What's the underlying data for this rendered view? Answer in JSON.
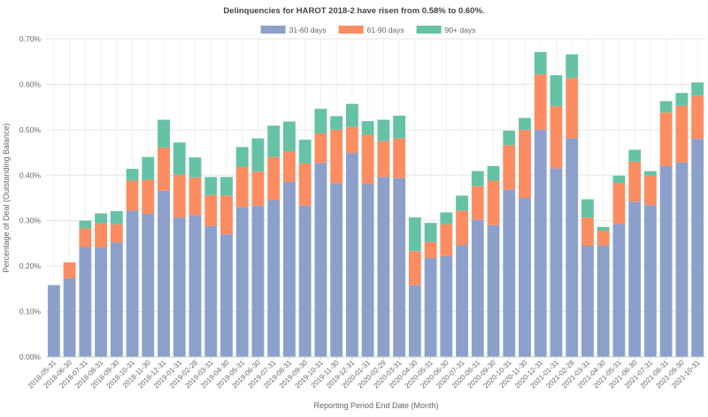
{
  "chart_data": {
    "type": "bar",
    "stacked": true,
    "title": "Delinquencies for HAROT 2018-2 have risen from 0.58% to 0.60%.",
    "xlabel": "Reporting Period End Date (Month)",
    "ylabel": "Percentage of Deal (Outstanding Balance)",
    "ylim": [
      0,
      0.7
    ],
    "yticks": [
      "0.00%",
      "0.10%",
      "0.20%",
      "0.30%",
      "0.40%",
      "0.50%",
      "0.60%",
      "0.70%"
    ],
    "grid": true,
    "legend_position": "top-center",
    "categories": [
      "2018-05-31",
      "2018-06-30",
      "2018-07-31",
      "2018-08-31",
      "2018-09-30",
      "2018-10-31",
      "2018-11-30",
      "2018-12-31",
      "2019-01-31",
      "2019-02-28",
      "2019-03-31",
      "2019-04-30",
      "2019-05-31",
      "2019-06-30",
      "2019-07-31",
      "2019-08-31",
      "2019-09-30",
      "2019-10-31",
      "2019-11-30",
      "2019-12-31",
      "2020-01-31",
      "2020-02-29",
      "2020-03-31",
      "2020-04-30",
      "2020-05-31",
      "2020-06-30",
      "2020-07-31",
      "2020-08-31",
      "2020-09-30",
      "2020-10-31",
      "2020-11-30",
      "2020-12-31",
      "2021-01-31",
      "2021-02-28",
      "2021-03-31",
      "2021-04-30",
      "2021-05-31",
      "2021-06-30",
      "2021-07-31",
      "2021-08-31",
      "2021-09-30",
      "2021-10-31"
    ],
    "series": [
      {
        "name": "31-60 days",
        "color": "#8da0cb",
        "values": [
          0.158,
          0.173,
          0.242,
          0.241,
          0.252,
          0.322,
          0.315,
          0.366,
          0.307,
          0.312,
          0.288,
          0.27,
          0.33,
          0.333,
          0.345,
          0.385,
          0.333,
          0.427,
          0.382,
          0.449,
          0.381,
          0.396,
          0.394,
          0.158,
          0.218,
          0.222,
          0.246,
          0.302,
          0.29,
          0.368,
          0.35,
          0.5,
          0.415,
          0.481,
          0.245,
          0.245,
          0.293,
          0.342,
          0.334,
          0.42,
          0.428,
          0.48
        ]
      },
      {
        "name": "61-90 days",
        "color": "#fc8d62",
        "values": [
          0.0,
          0.035,
          0.041,
          0.053,
          0.04,
          0.066,
          0.075,
          0.095,
          0.094,
          0.083,
          0.068,
          0.085,
          0.088,
          0.075,
          0.095,
          0.067,
          0.093,
          0.065,
          0.118,
          0.057,
          0.108,
          0.079,
          0.087,
          0.075,
          0.035,
          0.07,
          0.076,
          0.074,
          0.098,
          0.098,
          0.15,
          0.122,
          0.137,
          0.133,
          0.062,
          0.033,
          0.09,
          0.088,
          0.065,
          0.118,
          0.125,
          0.095
        ]
      },
      {
        "name": "90+ days",
        "color": "#66c2a5",
        "values": [
          0.0,
          0.0,
          0.017,
          0.022,
          0.029,
          0.026,
          0.05,
          0.061,
          0.071,
          0.044,
          0.04,
          0.041,
          0.044,
          0.073,
          0.069,
          0.066,
          0.052,
          0.054,
          0.03,
          0.051,
          0.03,
          0.047,
          0.05,
          0.074,
          0.042,
          0.026,
          0.033,
          0.033,
          0.032,
          0.032,
          0.026,
          0.049,
          0.068,
          0.052,
          0.04,
          0.008,
          0.016,
          0.026,
          0.01,
          0.025,
          0.028,
          0.029
        ]
      }
    ]
  }
}
